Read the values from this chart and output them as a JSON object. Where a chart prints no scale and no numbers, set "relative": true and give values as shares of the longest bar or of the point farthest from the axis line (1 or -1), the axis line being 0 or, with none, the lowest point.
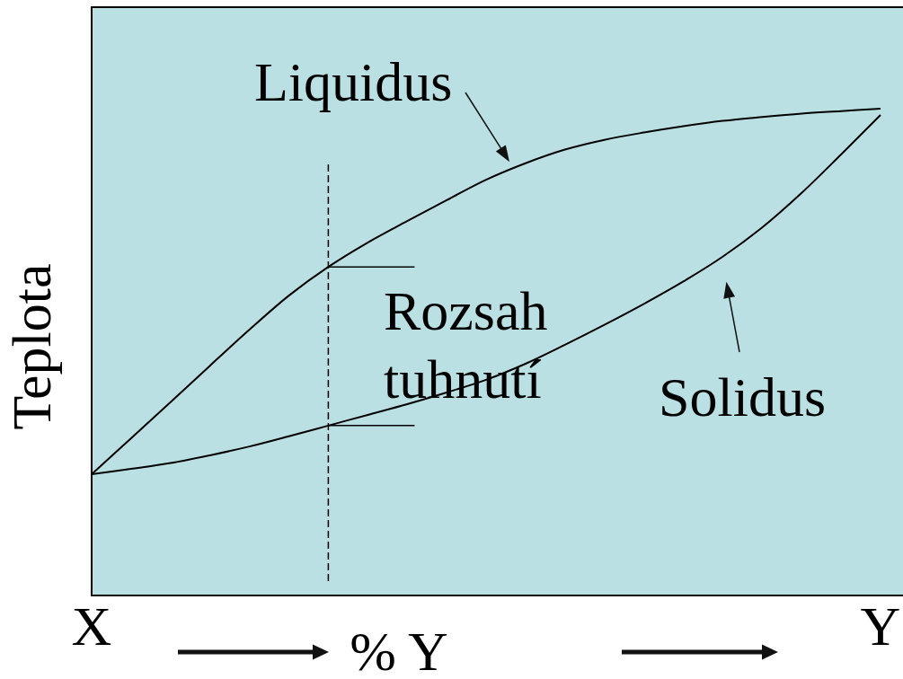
{
  "chart_data": {
    "type": "line",
    "relative": true,
    "ylabel": "Teplota",
    "xlabel": "% Y",
    "categories": [
      "X",
      null,
      null,
      null,
      null,
      null,
      null,
      null,
      null,
      null,
      null,
      null,
      null,
      null,
      null,
      null,
      null,
      null,
      null,
      null,
      "Y"
    ],
    "series": [
      {
        "name": "Liquidus",
        "color": "#000000",
        "values": [
          0.249,
          0.323,
          0.397,
          0.472,
          0.546,
          0.616,
          0.675,
          0.725,
          0.769,
          0.812,
          0.854,
          0.888,
          0.916,
          0.936,
          0.951,
          0.964,
          0.975,
          0.983,
          0.99,
          0.995,
          1
        ]
      },
      {
        "name": "Solidus",
        "color": "#000000",
        "values": [
          0.249,
          0.26,
          0.272,
          0.288,
          0.306,
          0.327,
          0.349,
          0.371,
          0.393,
          0.417,
          0.443,
          0.476,
          0.515,
          0.556,
          0.599,
          0.645,
          0.696,
          0.756,
          0.827,
          0.906,
          0.987
        ]
      }
    ],
    "annotations": [
      "Rozsah tuhnutí"
    ]
  }
}
